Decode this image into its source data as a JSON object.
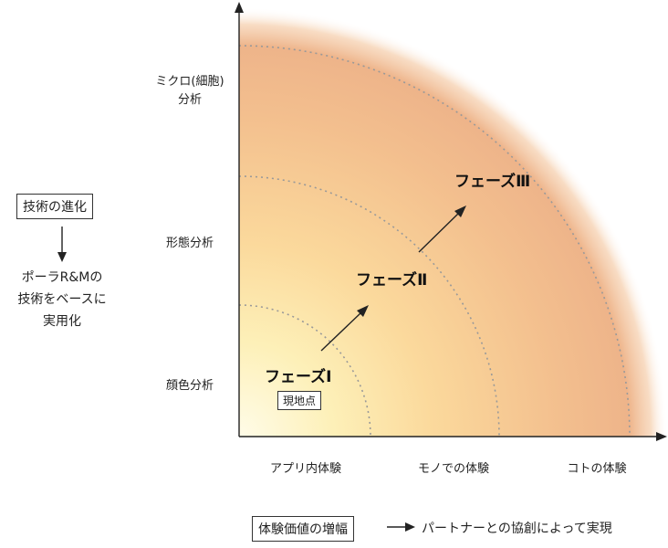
{
  "y_axis_labels": {
    "micro": [
      "ミクロ(細胞)",
      "分析"
    ],
    "shape": "形態分析",
    "color": "顔色分析"
  },
  "x_axis_labels": [
    "アプリ内体験",
    "モノでの体験",
    "コトの体験"
  ],
  "phases": {
    "one": "フェーズⅠ",
    "two": "フェーズⅡ",
    "three": "フェーズⅢ"
  },
  "current_point": "現地点",
  "left_panel": {
    "box": "技術の進化",
    "lines": [
      "ポーラR&Mの",
      "技術をベースに",
      "実用化"
    ]
  },
  "bottom_legend": {
    "box": "体験価値の増幅",
    "text": "パートナーとの協創によって実現"
  },
  "colors": {
    "inner": "#fffbe0",
    "mid": "#fbd79a",
    "outer": "#f0b48c",
    "axis": "#222222",
    "dotted": "#999999"
  }
}
